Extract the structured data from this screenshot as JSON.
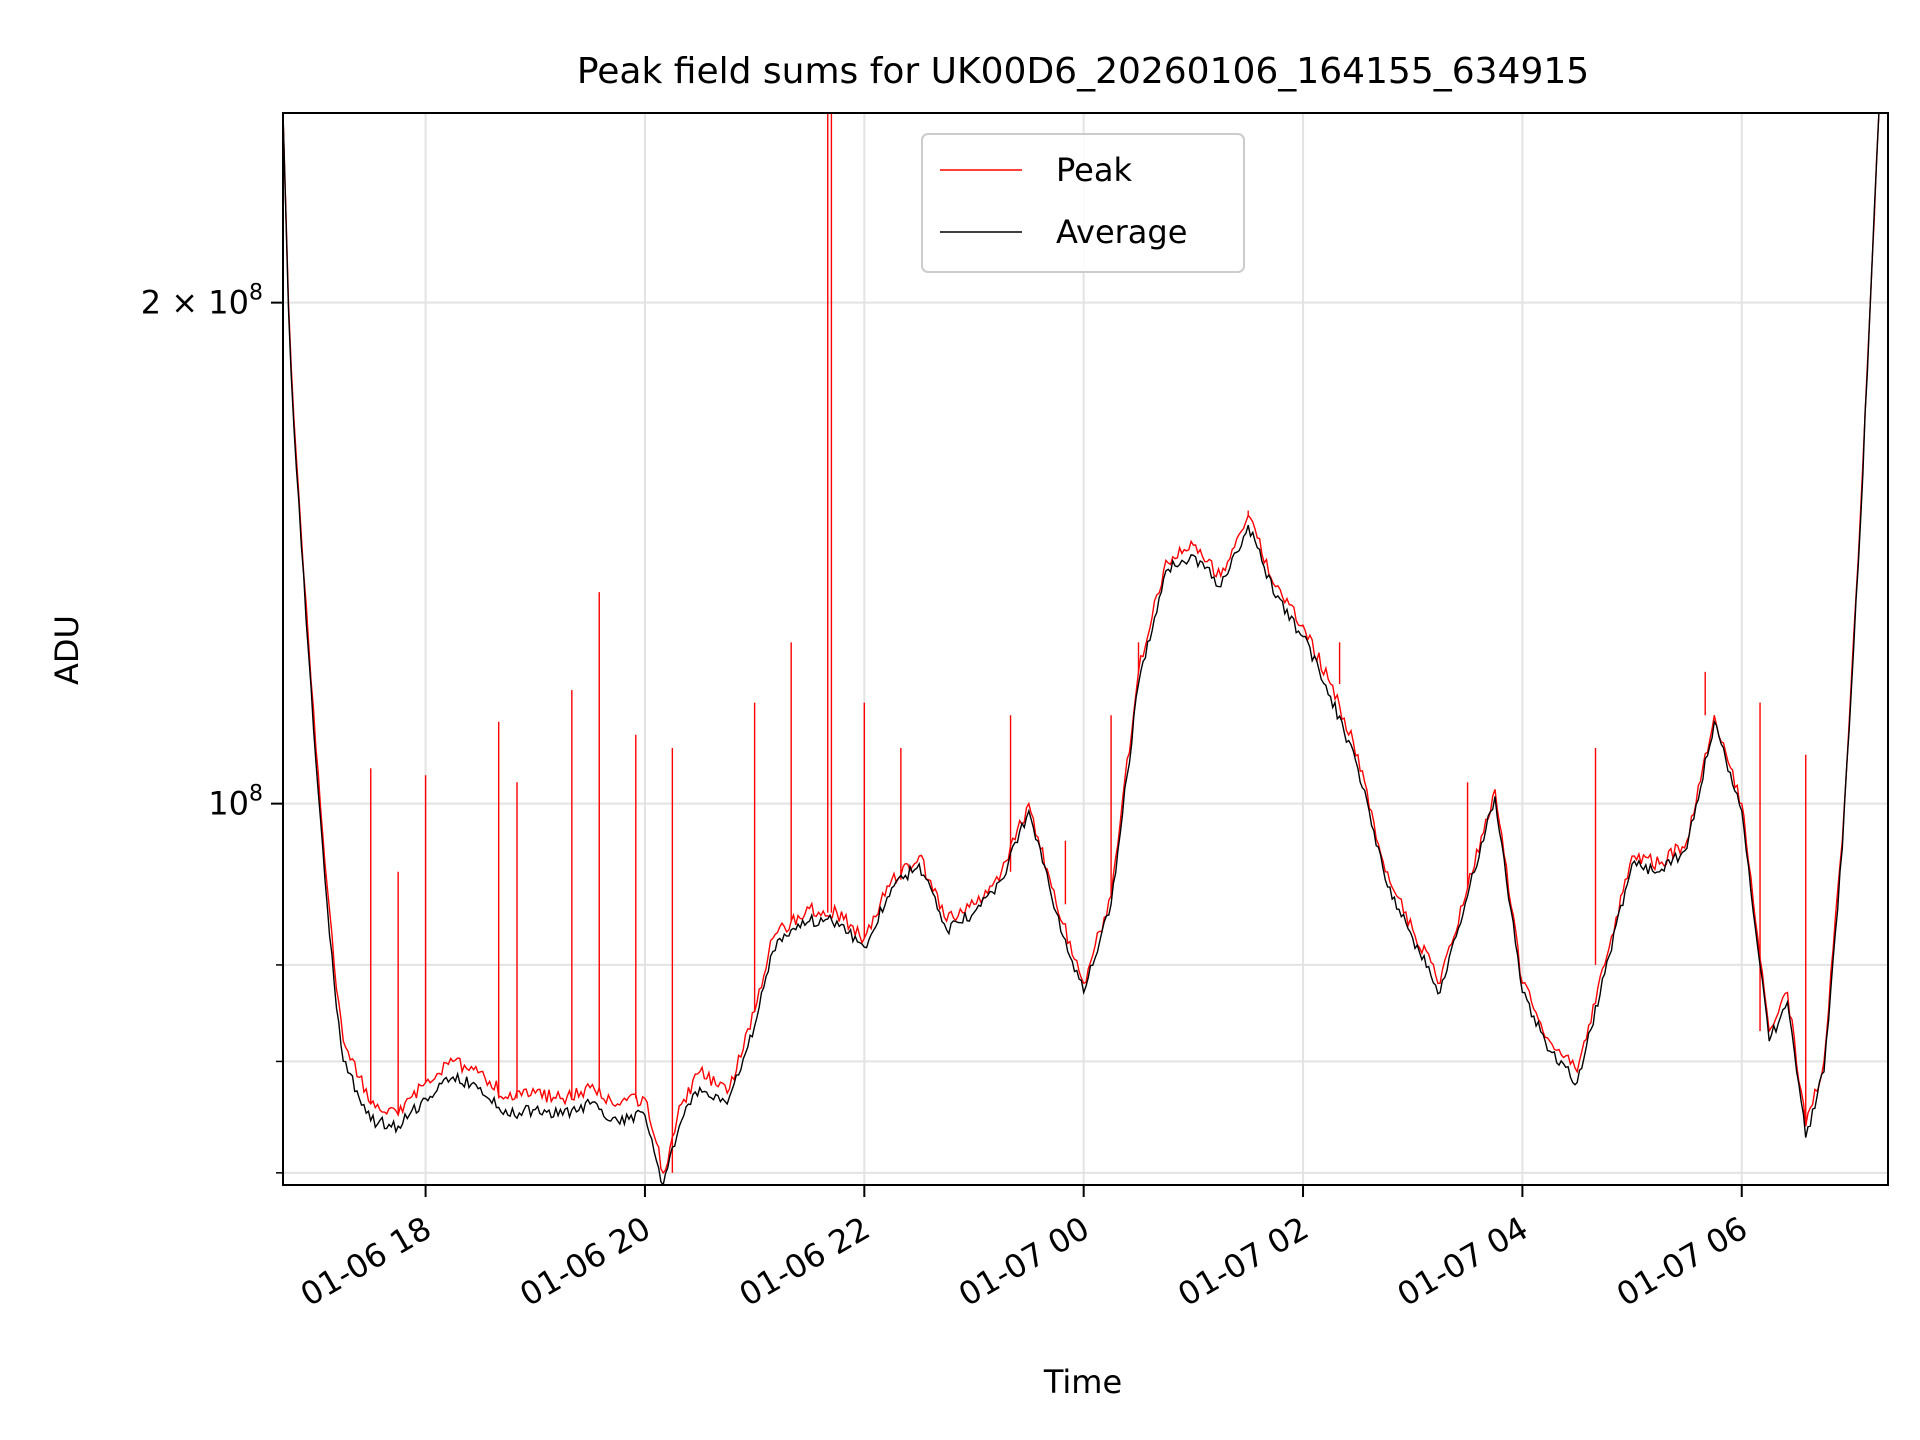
{
  "chart_data": {
    "type": "line",
    "title": "Peak field sums for UK00D6_20260106_164155_634915",
    "xlabel": "Time",
    "ylabel": "ADU",
    "y_scale": "log",
    "ylim": [
      59000000,
      260000000
    ],
    "xlim": [
      "2026-01-06 16:42",
      "2026-01-07 07:20"
    ],
    "x_ticks": [
      {
        "t": "2026-01-06 18:00",
        "label": "01-06 18"
      },
      {
        "t": "2026-01-06 20:00",
        "label": "01-06 20"
      },
      {
        "t": "2026-01-06 22:00",
        "label": "01-06 22"
      },
      {
        "t": "2026-01-07 00:00",
        "label": "01-07 00"
      },
      {
        "t": "2026-01-07 02:00",
        "label": "01-07 02"
      },
      {
        "t": "2026-01-07 04:00",
        "label": "01-07 04"
      },
      {
        "t": "2026-01-07 06:00",
        "label": "01-07 06"
      }
    ],
    "y_ticks_major": [
      {
        "value": 100000000,
        "base": "10",
        "exp": "8"
      },
      {
        "value": 200000000,
        "base": "2 × 10",
        "exp": "8"
      }
    ],
    "y_ticks_minor": [
      60000000,
      70000000,
      80000000
    ],
    "grid": true,
    "legend": {
      "position": "top-center"
    },
    "colors": {
      "peak": "#ff0000",
      "average": "#000000",
      "grid": "#e3e3e3"
    },
    "series": [
      {
        "name": "Peak",
        "color": "#ff0000",
        "points": [
          [
            "2026-01-06 16:42",
            260000000
          ],
          [
            "2026-01-06 16:45",
            200000000
          ],
          [
            "2026-01-06 16:48",
            170000000
          ],
          [
            "2026-01-06 16:52",
            145000000
          ],
          [
            "2026-01-06 16:56",
            125000000
          ],
          [
            "2026-01-06 17:00",
            108000000
          ],
          [
            "2026-01-06 17:05",
            92000000
          ],
          [
            "2026-01-06 17:10",
            80000000
          ],
          [
            "2026-01-06 17:15",
            72000000
          ],
          [
            "2026-01-06 17:30",
            66000000
          ],
          [
            "2026-01-06 17:45",
            65000000
          ],
          [
            "2026-01-06 18:00",
            68000000
          ],
          [
            "2026-01-06 18:15",
            70000000
          ],
          [
            "2026-01-06 18:30",
            69000000
          ],
          [
            "2026-01-06 18:45",
            66500000
          ],
          [
            "2026-01-06 19:00",
            67000000
          ],
          [
            "2026-01-06 19:15",
            66500000
          ],
          [
            "2026-01-06 19:30",
            67500000
          ],
          [
            "2026-01-06 19:45",
            66000000
          ],
          [
            "2026-01-06 20:00",
            66500000
          ],
          [
            "2026-01-06 20:10",
            60000000
          ],
          [
            "2026-01-06 20:20",
            66000000
          ],
          [
            "2026-01-06 20:30",
            69000000
          ],
          [
            "2026-01-06 20:45",
            67000000
          ],
          [
            "2026-01-06 21:00",
            75000000
          ],
          [
            "2026-01-06 21:10",
            83000000
          ],
          [
            "2026-01-06 21:20",
            85000000
          ],
          [
            "2026-01-06 21:30",
            86500000
          ],
          [
            "2026-01-06 21:45",
            86000000
          ],
          [
            "2026-01-06 22:00",
            83000000
          ],
          [
            "2026-01-06 22:15",
            90000000
          ],
          [
            "2026-01-06 22:30",
            93000000
          ],
          [
            "2026-01-06 22:45",
            85000000
          ],
          [
            "2026-01-06 23:00",
            87000000
          ],
          [
            "2026-01-06 23:15",
            91000000
          ],
          [
            "2026-01-06 23:30",
            100000000
          ],
          [
            "2026-01-06 23:45",
            87000000
          ],
          [
            "2026-01-07 00:00",
            78000000
          ],
          [
            "2026-01-07 00:15",
            88000000
          ],
          [
            "2026-01-07 00:30",
            120000000
          ],
          [
            "2026-01-07 00:45",
            140000000
          ],
          [
            "2026-01-07 01:00",
            143000000
          ],
          [
            "2026-01-07 01:15",
            137000000
          ],
          [
            "2026-01-07 01:30",
            149000000
          ],
          [
            "2026-01-07 01:45",
            135000000
          ],
          [
            "2026-01-07 02:00",
            128000000
          ],
          [
            "2026-01-07 02:15",
            118000000
          ],
          [
            "2026-01-07 02:30",
            107000000
          ],
          [
            "2026-01-07 02:45",
            91000000
          ],
          [
            "2026-01-07 03:00",
            84000000
          ],
          [
            "2026-01-07 03:15",
            78000000
          ],
          [
            "2026-01-07 03:30",
            89000000
          ],
          [
            "2026-01-07 03:45",
            102000000
          ],
          [
            "2026-01-07 04:00",
            78000000
          ],
          [
            "2026-01-07 04:15",
            72000000
          ],
          [
            "2026-01-07 04:30",
            69000000
          ],
          [
            "2026-01-07 04:45",
            80000000
          ],
          [
            "2026-01-07 05:00",
            93000000
          ],
          [
            "2026-01-07 05:15",
            92000000
          ],
          [
            "2026-01-07 05:30",
            95000000
          ],
          [
            "2026-01-07 05:45",
            113000000
          ],
          [
            "2026-01-07 06:00",
            100000000
          ],
          [
            "2026-01-07 06:15",
            73000000
          ],
          [
            "2026-01-07 06:25",
            77000000
          ],
          [
            "2026-01-07 06:35",
            64000000
          ],
          [
            "2026-01-07 06:45",
            70000000
          ],
          [
            "2026-01-07 06:55",
            95000000
          ],
          [
            "2026-01-07 07:05",
            150000000
          ],
          [
            "2026-01-07 07:15",
            260000000
          ]
        ],
        "spikes": [
          [
            "2026-01-06 17:30",
            105000000
          ],
          [
            "2026-01-06 17:45",
            91000000
          ],
          [
            "2026-01-06 18:00",
            104000000
          ],
          [
            "2026-01-06 18:40",
            112000000
          ],
          [
            "2026-01-06 18:50",
            103000000
          ],
          [
            "2026-01-06 19:20",
            117000000
          ],
          [
            "2026-01-06 19:35",
            134000000
          ],
          [
            "2026-01-06 19:55",
            110000000
          ],
          [
            "2026-01-06 20:15",
            108000000
          ],
          [
            "2026-01-06 21:00",
            115000000
          ],
          [
            "2026-01-06 21:20",
            125000000
          ],
          [
            "2026-01-06 21:40",
            260000000
          ],
          [
            "2026-01-06 21:42",
            260000000
          ],
          [
            "2026-01-06 22:00",
            115000000
          ],
          [
            "2026-01-06 22:20",
            108000000
          ],
          [
            "2026-01-06 23:20",
            113000000
          ],
          [
            "2026-01-06 23:50",
            95000000
          ],
          [
            "2026-01-07 00:15",
            113000000
          ],
          [
            "2026-01-07 00:30",
            125000000
          ],
          [
            "2026-01-07 01:30",
            150000000
          ],
          [
            "2026-01-07 02:20",
            125000000
          ],
          [
            "2026-01-07 03:30",
            103000000
          ],
          [
            "2026-01-07 04:40",
            108000000
          ],
          [
            "2026-01-07 05:40",
            120000000
          ],
          [
            "2026-01-07 06:10",
            115000000
          ],
          [
            "2026-01-07 06:35",
            107000000
          ]
        ]
      },
      {
        "name": "Average",
        "color": "#000000",
        "points": [
          [
            "2026-01-06 16:42",
            260000000
          ],
          [
            "2026-01-06 16:45",
            198000000
          ],
          [
            "2026-01-06 16:48",
            168000000
          ],
          [
            "2026-01-06 16:52",
            143000000
          ],
          [
            "2026-01-06 16:56",
            123000000
          ],
          [
            "2026-01-06 17:00",
            106000000
          ],
          [
            "2026-01-06 17:05",
            90000000
          ],
          [
            "2026-01-06 17:10",
            78000000
          ],
          [
            "2026-01-06 17:15",
            70000000
          ],
          [
            "2026-01-06 17:30",
            64500000
          ],
          [
            "2026-01-06 17:45",
            64000000
          ],
          [
            "2026-01-06 18:00",
            66500000
          ],
          [
            "2026-01-06 18:15",
            68500000
          ],
          [
            "2026-01-06 18:30",
            67500000
          ],
          [
            "2026-01-06 18:45",
            65000000
          ],
          [
            "2026-01-06 19:00",
            65500000
          ],
          [
            "2026-01-06 19:15",
            65000000
          ],
          [
            "2026-01-06 19:30",
            66000000
          ],
          [
            "2026-01-06 19:45",
            64500000
          ],
          [
            "2026-01-06 20:00",
            65000000
          ],
          [
            "2026-01-06 20:10",
            59000000
          ],
          [
            "2026-01-06 20:20",
            64500000
          ],
          [
            "2026-01-06 20:30",
            67500000
          ],
          [
            "2026-01-06 20:45",
            66000000
          ],
          [
            "2026-01-06 21:00",
            73500000
          ],
          [
            "2026-01-06 21:10",
            81500000
          ],
          [
            "2026-01-06 21:20",
            84000000
          ],
          [
            "2026-01-06 21:30",
            85000000
          ],
          [
            "2026-01-06 21:45",
            85000000
          ],
          [
            "2026-01-06 22:00",
            82000000
          ],
          [
            "2026-01-06 22:15",
            89000000
          ],
          [
            "2026-01-06 22:30",
            92000000
          ],
          [
            "2026-01-06 22:45",
            84000000
          ],
          [
            "2026-01-06 23:00",
            86000000
          ],
          [
            "2026-01-06 23:15",
            90000000
          ],
          [
            "2026-01-06 23:30",
            99000000
          ],
          [
            "2026-01-06 23:45",
            86000000
          ],
          [
            "2026-01-07 00:00",
            77000000
          ],
          [
            "2026-01-07 00:15",
            87000000
          ],
          [
            "2026-01-07 00:30",
            118000000
          ],
          [
            "2026-01-07 00:45",
            138000000
          ],
          [
            "2026-01-07 01:00",
            141000000
          ],
          [
            "2026-01-07 01:15",
            135000000
          ],
          [
            "2026-01-07 01:30",
            147000000
          ],
          [
            "2026-01-07 01:45",
            133000000
          ],
          [
            "2026-01-07 02:00",
            126000000
          ],
          [
            "2026-01-07 02:15",
            116000000
          ],
          [
            "2026-01-07 02:30",
            105000000
          ],
          [
            "2026-01-07 02:45",
            90000000
          ],
          [
            "2026-01-07 03:00",
            83000000
          ],
          [
            "2026-01-07 03:15",
            77000000
          ],
          [
            "2026-01-07 03:30",
            88000000
          ],
          [
            "2026-01-07 03:45",
            101000000
          ],
          [
            "2026-01-07 04:00",
            77000000
          ],
          [
            "2026-01-07 04:15",
            71000000
          ],
          [
            "2026-01-07 04:30",
            68000000
          ],
          [
            "2026-01-07 04:45",
            79000000
          ],
          [
            "2026-01-07 05:00",
            92000000
          ],
          [
            "2026-01-07 05:15",
            91000000
          ],
          [
            "2026-01-07 05:30",
            94000000
          ],
          [
            "2026-01-07 05:45",
            112000000
          ],
          [
            "2026-01-07 06:00",
            99000000
          ],
          [
            "2026-01-07 06:15",
            72000000
          ],
          [
            "2026-01-07 06:25",
            76000000
          ],
          [
            "2026-01-07 06:35",
            63000000
          ],
          [
            "2026-01-07 06:45",
            69000000
          ],
          [
            "2026-01-07 06:55",
            94000000
          ],
          [
            "2026-01-07 07:05",
            148000000
          ],
          [
            "2026-01-07 07:15",
            260000000
          ]
        ]
      }
    ]
  }
}
